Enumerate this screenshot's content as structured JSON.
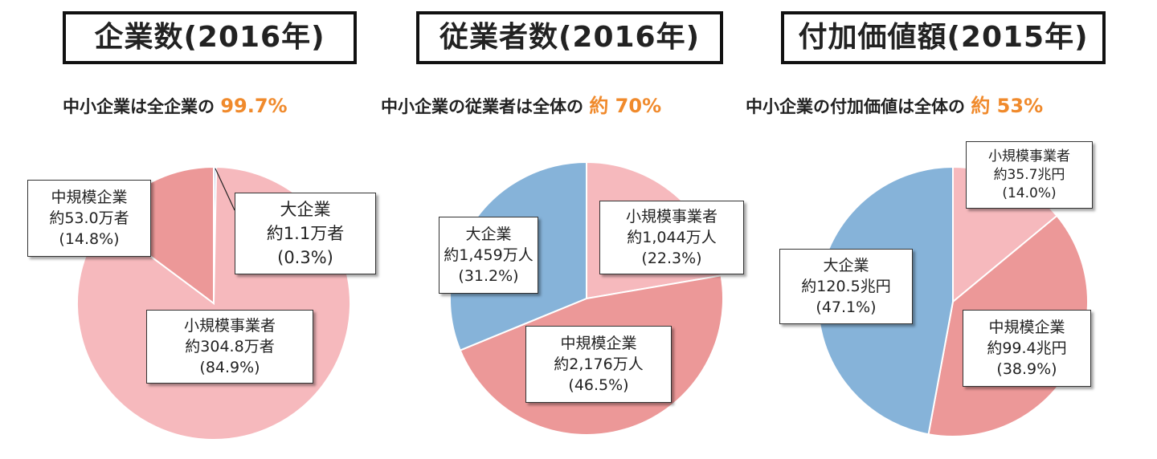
{
  "chart_data": [
    {
      "type": "pie",
      "title": "企業数(2016年)",
      "subtitle": {
        "text": "中小企業は全企業の",
        "highlight": "99.7%"
      },
      "slices": [
        {
          "label": "大企業",
          "amount": "約1.1万者",
          "pct_label": "(0.3%)",
          "value": 0.3,
          "color": "#bcc7e2"
        },
        {
          "label": "小規模事業者",
          "amount": "約304.8万者",
          "pct_label": "(84.9%)",
          "value": 84.9,
          "color": "#f6b9bd"
        },
        {
          "label": "中規模企業",
          "amount": "約53.0万者",
          "pct_label": "(14.8%)",
          "value": 14.8,
          "color": "#ec9898"
        }
      ]
    },
    {
      "type": "pie",
      "title": "従業者数(2016年)",
      "subtitle": {
        "text": "中小企業の従業者は全体の",
        "highlight": "約 70%"
      },
      "slices": [
        {
          "label": "小規模事業者",
          "amount": "約1,044万人",
          "pct_label": "(22.3%)",
          "value": 22.3,
          "color": "#f6b9bd"
        },
        {
          "label": "中規模企業",
          "amount": "約2,176万人",
          "pct_label": "(46.5%)",
          "value": 46.5,
          "color": "#ec9898"
        },
        {
          "label": "大企業",
          "amount": "約1,459万人",
          "pct_label": "(31.2%)",
          "value": 31.2,
          "color": "#86b3d9"
        }
      ]
    },
    {
      "type": "pie",
      "title": "付加価値額(2015年)",
      "subtitle": {
        "text": "中小企業の付加価値は全体の",
        "highlight": "約 53%"
      },
      "slices": [
        {
          "label": "小規模事業者",
          "amount": "約35.7兆円",
          "pct_label": "(14.0%)",
          "value": 14.0,
          "color": "#f6b9bd"
        },
        {
          "label": "中規模企業",
          "amount": "約99.4兆円",
          "pct_label": "(38.9%)",
          "value": 38.9,
          "color": "#ec9898"
        },
        {
          "label": "大企業",
          "amount": "約120.5兆円",
          "pct_label": "(47.1%)",
          "value": 47.1,
          "color": "#86b3d9"
        }
      ]
    }
  ]
}
